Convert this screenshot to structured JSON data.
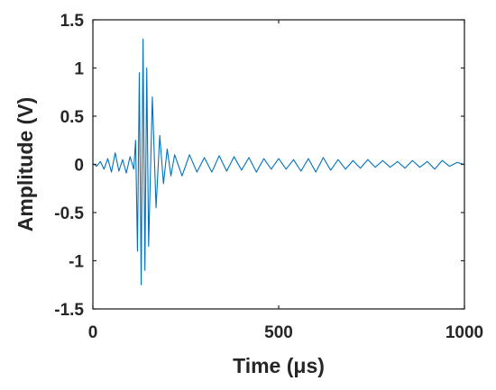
{
  "chart_data": {
    "type": "line",
    "title": "",
    "xlabel": "Time (μs)",
    "ylabel": "Amplitude (V)",
    "xlim": [
      0,
      1000
    ],
    "ylim": [
      -1.5,
      1.5
    ],
    "xticks": [
      0,
      500,
      1000
    ],
    "xtick_labels": [
      "0",
      "500",
      "1000"
    ],
    "yticks": [
      -1.5,
      -1,
      -0.5,
      0,
      0.5,
      1,
      1.5
    ],
    "ytick_labels": [
      "-1.5",
      "-1",
      "-0.5",
      "0",
      "0.5",
      "1",
      "1.5"
    ],
    "grid": false,
    "legend": "none",
    "line_color": "#0072BD",
    "series": [
      {
        "x": [
          0,
          10,
          20,
          30,
          40,
          50,
          60,
          70,
          80,
          90,
          100,
          110,
          115,
          120,
          125,
          130,
          135,
          140,
          145,
          150,
          160,
          170,
          180,
          190,
          200,
          210,
          220,
          240,
          260,
          280,
          300,
          320,
          340,
          360,
          380,
          400,
          420,
          440,
          460,
          480,
          500,
          520,
          540,
          560,
          580,
          600,
          620,
          640,
          660,
          680,
          700,
          720,
          740,
          760,
          780,
          800,
          820,
          840,
          860,
          880,
          900,
          920,
          940,
          960,
          980,
          1000
        ],
        "values": [
          0.01,
          -0.02,
          0.03,
          -0.05,
          0.06,
          -0.08,
          0.12,
          -0.07,
          0.05,
          -0.09,
          0.08,
          -0.05,
          0.25,
          -0.9,
          0.95,
          -1.25,
          1.3,
          -1.1,
          1.0,
          -0.85,
          0.7,
          -0.45,
          0.3,
          -0.2,
          0.16,
          -0.12,
          0.1,
          -0.12,
          0.1,
          -0.08,
          0.07,
          -0.08,
          0.09,
          -0.07,
          0.08,
          -0.06,
          0.07,
          -0.08,
          0.06,
          -0.05,
          0.06,
          -0.05,
          0.05,
          -0.07,
          0.06,
          -0.08,
          0.07,
          -0.06,
          0.05,
          -0.05,
          0.04,
          -0.04,
          0.05,
          -0.03,
          0.04,
          -0.03,
          0.03,
          -0.04,
          0.04,
          -0.03,
          0.03,
          -0.05,
          0.04,
          -0.02,
          0.02,
          0.0
        ]
      }
    ]
  }
}
